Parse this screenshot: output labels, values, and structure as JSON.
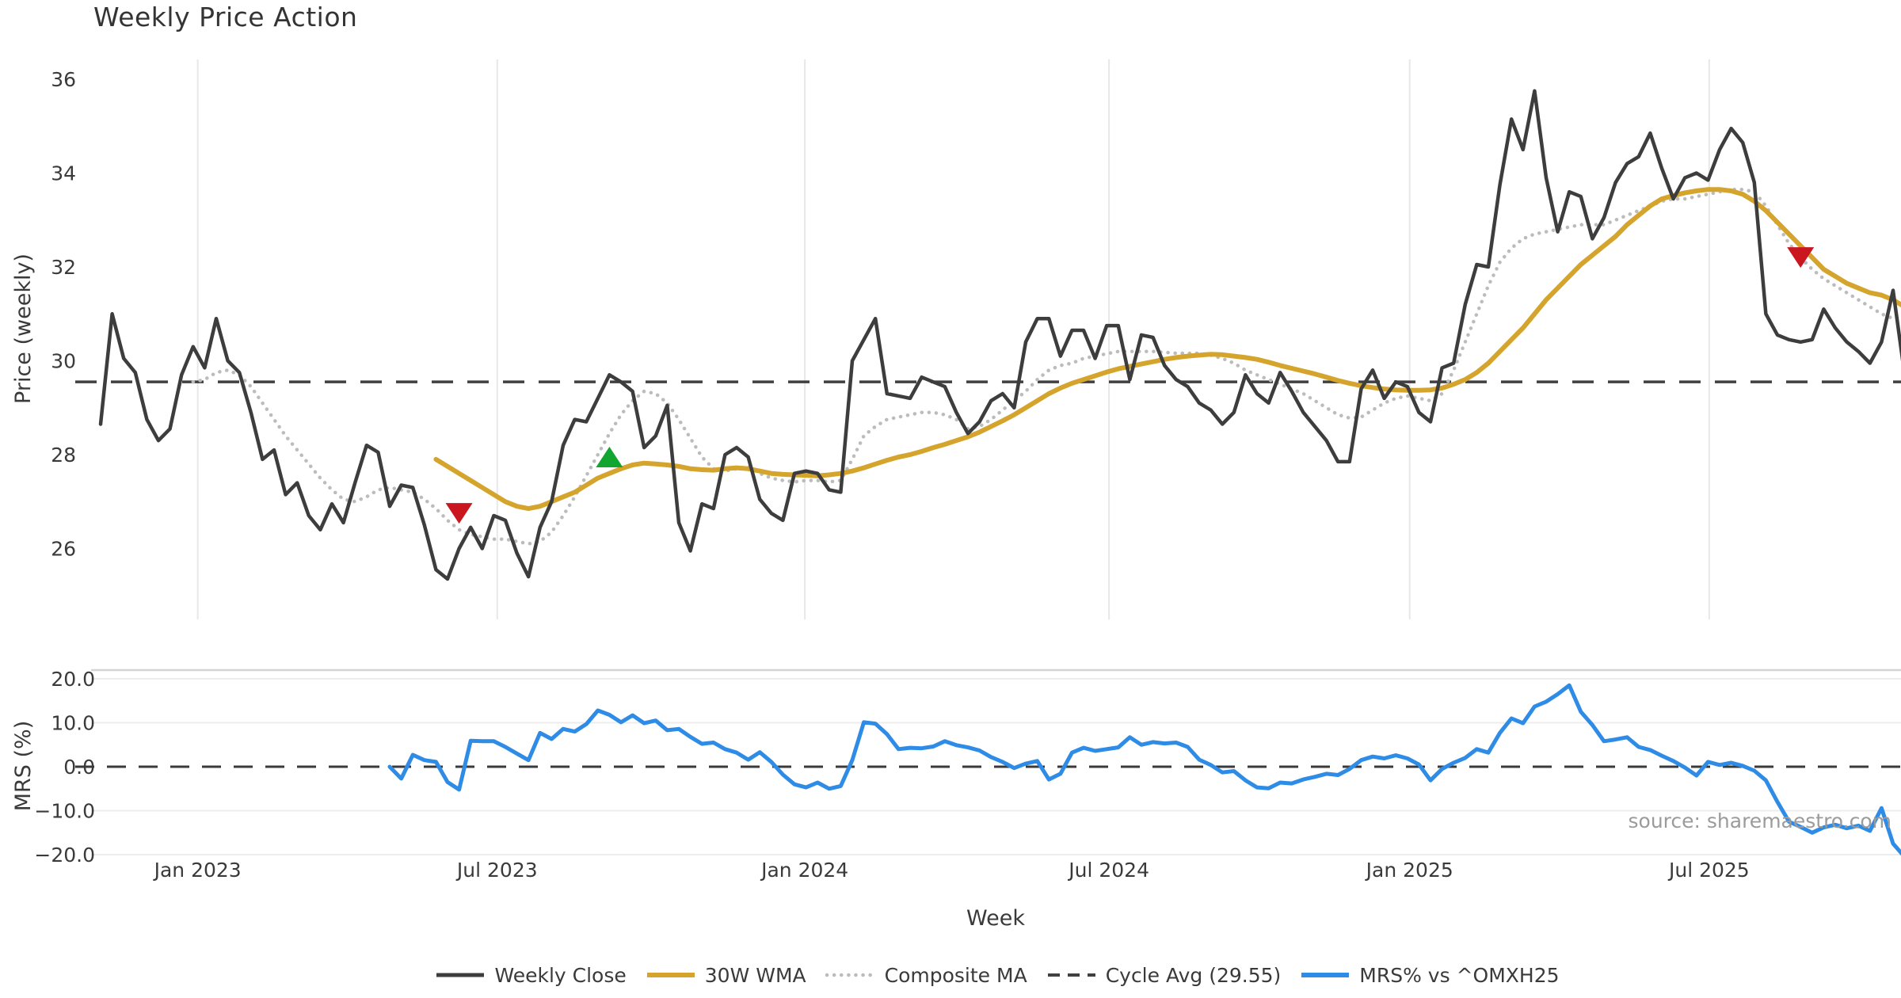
{
  "chart_data": {
    "type": "line",
    "title": "Weekly Price Action",
    "source": "source: sharemaestro.com",
    "x_axis": {
      "label": "Week",
      "ticks": [
        {
          "label": "Jan 2023",
          "week": 8.4
        },
        {
          "label": "Jul 2023",
          "week": 34.3
        },
        {
          "label": "Jan 2024",
          "week": 60.9
        },
        {
          "label": "Jul 2024",
          "week": 87.2
        },
        {
          "label": "Jan 2025",
          "week": 113.2
        },
        {
          "label": "Jul 2025",
          "week": 139.1
        }
      ]
    },
    "panels": [
      {
        "id": "price",
        "ylabel": "Price (weekly)",
        "ylim": [
          24.7,
          36.67
        ],
        "yticks": {
          "values": [
            36,
            34,
            32,
            30,
            28,
            26
          ],
          "labels": [
            "36",
            "34",
            "32",
            "30",
            "28",
            "26"
          ]
        },
        "cycle_avg": 29.55,
        "series": {
          "weekly_close": {
            "name": "Weekly Close",
            "color": "#3d3d3d",
            "style": "solid",
            "width": 4.5,
            "values": [
              28.65,
              31.0,
              30.05,
              29.75,
              28.75,
              28.3,
              28.55,
              29.7,
              30.3,
              29.85,
              30.9,
              30.0,
              29.75,
              28.9,
              27.9,
              28.1,
              27.15,
              27.4,
              26.7,
              26.4,
              26.95,
              26.55,
              27.4,
              28.2,
              28.05,
              26.9,
              27.35,
              27.3,
              26.5,
              25.55,
              25.35,
              26.0,
              26.45,
              26.0,
              26.7,
              26.6,
              25.9,
              25.4,
              26.45,
              27.0,
              28.2,
              28.75,
              28.7,
              29.2,
              29.7,
              29.55,
              29.35,
              28.15,
              28.4,
              29.05,
              26.55,
              25.95,
              26.95,
              26.85,
              28.0,
              28.15,
              27.95,
              27.05,
              26.75,
              26.6,
              27.6,
              27.65,
              27.6,
              27.25,
              27.2,
              30.0,
              30.45,
              30.9,
              29.3,
              29.25,
              29.2,
              29.65,
              29.55,
              29.45,
              28.9,
              28.45,
              28.7,
              29.15,
              29.3,
              29.0,
              30.4,
              30.9,
              30.9,
              30.1,
              30.65,
              30.65,
              30.05,
              30.75,
              30.75,
              29.6,
              30.55,
              30.5,
              29.9,
              29.6,
              29.45,
              29.1,
              28.95,
              28.65,
              28.9,
              29.7,
              29.3,
              29.1,
              29.75,
              29.35,
              28.9,
              28.6,
              28.3,
              27.85,
              27.85,
              29.4,
              29.8,
              29.2,
              29.55,
              29.45,
              28.9,
              28.7,
              29.85,
              29.95,
              31.2,
              32.05,
              32.0,
              33.75,
              35.15,
              34.5,
              35.75,
              33.9,
              32.75,
              33.6,
              33.5,
              32.6,
              33.05,
              33.8,
              34.2,
              34.35,
              34.85,
              34.1,
              33.45,
              33.9,
              34.0,
              33.85,
              34.5,
              34.95,
              34.65,
              33.8,
              31.0,
              30.55,
              30.45,
              30.4,
              30.45,
              31.1,
              30.7,
              30.4,
              30.2,
              29.95,
              30.4,
              31.5,
              29.7
            ]
          },
          "wma30": {
            "name": "30W WMA",
            "color": "#d5a42c",
            "style": "solid",
            "width": 6,
            "values": [
              null,
              null,
              null,
              null,
              null,
              null,
              null,
              null,
              null,
              null,
              null,
              null,
              null,
              null,
              null,
              null,
              null,
              null,
              null,
              null,
              null,
              null,
              null,
              null,
              null,
              null,
              null,
              null,
              null,
              27.9,
              27.75,
              27.6,
              27.45,
              27.3,
              27.15,
              27.0,
              26.9,
              26.85,
              26.9,
              27.0,
              27.1,
              27.2,
              27.35,
              27.5,
              27.6,
              27.7,
              27.78,
              27.82,
              27.8,
              27.78,
              27.75,
              27.7,
              27.68,
              27.67,
              27.7,
              27.72,
              27.7,
              27.65,
              27.6,
              27.58,
              27.57,
              27.56,
              27.55,
              27.57,
              27.6,
              27.65,
              27.72,
              27.8,
              27.88,
              27.95,
              28.0,
              28.07,
              28.15,
              28.22,
              28.3,
              28.38,
              28.48,
              28.6,
              28.72,
              28.85,
              29.0,
              29.15,
              29.3,
              29.42,
              29.52,
              29.6,
              29.68,
              29.76,
              29.83,
              29.88,
              29.93,
              29.98,
              30.03,
              30.07,
              30.1,
              30.12,
              30.14,
              30.13,
              30.1,
              30.07,
              30.03,
              29.97,
              29.9,
              29.84,
              29.78,
              29.72,
              29.65,
              29.58,
              29.52,
              29.47,
              29.43,
              29.4,
              29.38,
              29.37,
              29.37,
              29.38,
              29.42,
              29.5,
              29.6,
              29.75,
              29.95,
              30.2,
              30.45,
              30.7,
              31.0,
              31.3,
              31.55,
              31.8,
              32.05,
              32.25,
              32.45,
              32.65,
              32.9,
              33.1,
              33.3,
              33.45,
              33.52,
              33.58,
              33.62,
              33.65,
              33.65,
              33.62,
              33.55,
              33.4,
              33.2,
              32.95,
              32.7,
              32.45,
              32.2,
              31.95,
              31.8,
              31.65,
              31.55,
              31.45,
              31.4,
              31.3,
              31.15
            ]
          },
          "composite": {
            "name": "Composite MA",
            "color": "#bcbcbc",
            "style": "dotted",
            "width": 4.5,
            "values": [
              null,
              null,
              null,
              null,
              null,
              null,
              null,
              null,
              29.55,
              29.6,
              29.75,
              29.8,
              29.7,
              29.45,
              29.1,
              28.75,
              28.4,
              28.1,
              27.8,
              27.5,
              27.25,
              27.05,
              27.0,
              27.1,
              27.25,
              27.3,
              27.25,
              27.2,
              27.05,
              26.85,
              26.6,
              26.4,
              26.3,
              26.25,
              26.2,
              26.2,
              26.15,
              26.1,
              26.15,
              26.35,
              26.7,
              27.1,
              27.55,
              28.0,
              28.45,
              28.85,
              29.15,
              29.35,
              29.3,
              29.1,
              28.75,
              28.35,
              27.95,
              27.7,
              27.65,
              27.7,
              27.75,
              27.6,
              27.5,
              27.45,
              27.42,
              27.45,
              27.45,
              27.42,
              27.45,
              27.9,
              28.4,
              28.6,
              28.75,
              28.8,
              28.85,
              28.9,
              28.9,
              28.85,
              28.75,
              28.55,
              28.6,
              28.75,
              28.95,
              29.15,
              29.35,
              29.6,
              29.8,
              29.9,
              29.95,
              30.05,
              30.1,
              30.15,
              30.2,
              30.2,
              30.2,
              30.2,
              30.18,
              30.16,
              30.16,
              30.16,
              30.12,
              30.05,
              29.95,
              29.8,
              29.7,
              29.6,
              29.5,
              29.4,
              29.3,
              29.15,
              29.0,
              28.85,
              28.78,
              28.8,
              28.95,
              29.1,
              29.2,
              29.25,
              29.2,
              29.15,
              29.3,
              29.8,
              30.4,
              31.0,
              31.6,
              32.1,
              32.4,
              32.6,
              32.7,
              32.75,
              32.8,
              32.85,
              32.9,
              32.9,
              32.9,
              33.0,
              33.1,
              33.2,
              33.3,
              33.4,
              33.45,
              33.45,
              33.5,
              33.55,
              33.6,
              33.65,
              33.65,
              33.6,
              33.3,
              32.9,
              32.5,
              32.2,
              31.95,
              31.75,
              31.6,
              31.45,
              31.3,
              31.15,
              31.0,
              30.9,
              30.95
            ]
          }
        },
        "markers": [
          {
            "type": "sell",
            "shape": "triangle-down",
            "color": "#c9161f",
            "week": 31,
            "price": 26.75
          },
          {
            "type": "buy",
            "shape": "triangle-up",
            "color": "#12a52f",
            "week": 44,
            "price": 27.95
          },
          {
            "type": "sell",
            "shape": "triangle-down",
            "color": "#c9161f",
            "week": 147,
            "price": 32.2
          }
        ]
      },
      {
        "id": "mrs",
        "ylabel": "MRS (%)",
        "ylim": [
          -21.7,
          21.7
        ],
        "yticks": {
          "values": [
            20,
            10,
            0,
            -10,
            -20
          ],
          "labels": [
            "20.0",
            "10.0",
            "0.0",
            "−10.0",
            "−20.0"
          ]
        },
        "zero_line": 0,
        "series": {
          "mrs": {
            "name": "MRS% vs ^OMXH25",
            "color": "#2e8ce6",
            "style": "solid",
            "width": 5,
            "values": [
              null,
              null,
              null,
              null,
              null,
              null,
              null,
              null,
              null,
              null,
              null,
              null,
              null,
              null,
              null,
              null,
              null,
              null,
              null,
              null,
              null,
              null,
              null,
              null,
              null,
              0.0,
              -2.7,
              2.7,
              1.5,
              1.1,
              -3.5,
              -5.2,
              5.9,
              5.8,
              5.8,
              4.5,
              3.0,
              1.5,
              7.7,
              6.3,
              8.6,
              8.0,
              9.7,
              12.8,
              11.8,
              10.1,
              11.7,
              9.9,
              10.5,
              8.3,
              8.6,
              6.8,
              5.2,
              5.5,
              4.0,
              3.2,
              1.6,
              3.3,
              1.1,
              -1.8,
              -4.0,
              -4.7,
              -3.6,
              -5.0,
              -4.4,
              1.5,
              10.1,
              9.8,
              7.4,
              4.0,
              4.3,
              4.2,
              4.6,
              5.8,
              4.9,
              4.4,
              3.7,
              2.2,
              1.1,
              -0.3,
              0.7,
              1.3,
              -2.9,
              -1.6,
              3.2,
              4.3,
              3.6,
              4.0,
              4.4,
              6.7,
              5.0,
              5.6,
              5.3,
              5.5,
              4.5,
              1.6,
              0.4,
              -1.3,
              -1.0,
              -3.1,
              -4.7,
              -4.9,
              -3.6,
              -3.8,
              -2.9,
              -2.3,
              -1.6,
              -1.9,
              -0.5,
              1.5,
              2.3,
              1.9,
              2.6,
              1.9,
              0.5,
              -3.1,
              -0.5,
              0.9,
              2.0,
              4.0,
              3.2,
              7.7,
              11.0,
              9.9,
              13.7,
              14.8,
              16.5,
              18.5,
              12.5,
              9.5,
              5.8,
              6.2,
              6.7,
              4.5,
              3.8,
              2.5,
              1.3,
              -0.2,
              -2.0,
              1.1,
              0.4,
              0.9,
              0.2,
              -0.9,
              -3.1,
              -8.0,
              -12.5,
              -13.7,
              -15.0,
              -13.8,
              -13.2,
              -14.0,
              -13.4,
              -14.6,
              -9.4,
              -17.5,
              -20.5
            ]
          }
        }
      }
    ],
    "legend": [
      {
        "label": "Weekly Close",
        "color": "#3d3d3d",
        "style": "solid",
        "width": 5
      },
      {
        "label": "30W WMA",
        "color": "#d5a42c",
        "style": "solid",
        "width": 6
      },
      {
        "label": "Composite MA",
        "color": "#bcbcbc",
        "style": "dotted",
        "width": 4.5
      },
      {
        "label": "Cycle Avg (29.55)",
        "color": "#404040",
        "style": "dashed",
        "width": 4
      },
      {
        "label": "MRS% vs ^OMXH25",
        "color": "#2e8ce6",
        "style": "solid",
        "width": 6
      }
    ]
  }
}
